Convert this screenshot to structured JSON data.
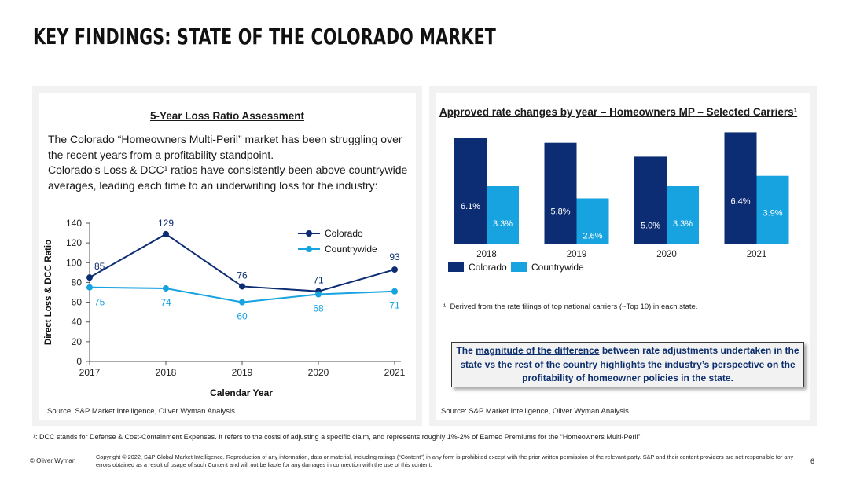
{
  "page": {
    "title": "KEY FINDINGS: STATE OF THE COLORADO MARKET",
    "page_number": "6",
    "brand": "© Oliver Wyman",
    "footnote": "¹: DCC stands for Defense & Cost-Containment Expenses. It refers to the costs of adjusting a specific claim, and represents roughly 1%-2% of Earned Premiums for the “Homeowners Multi-Peril”.",
    "copyright": "Copyright © 2022, S&P Global Market Intelligence.  Reproduction of any information, data or material, including ratings (“Content”) in any form is prohibited except with the prior written permission of the relevant party.  S&P and their content providers are not responsible for any errors obtained as a result of usage of such Content and will not be liable for any damages in connection with the use of this content."
  },
  "left_panel": {
    "title": "5-Year Loss Ratio Assessment",
    "desc_line1": "The Colorado “Homeowners Multi-Peril” market has been struggling over the recent years from a profitability standpoint.",
    "desc_line2": "Colorado’s Loss & DCC¹ ratios have consistently been above countrywide averages, leading each time to an underwriting loss for the industry:",
    "source": "Source: S&P Market Intelligence, Oliver Wyman Analysis."
  },
  "right_panel": {
    "title": "Approved rate changes by year – Homeowners MP – Selected Carriers¹",
    "note": "¹: Derived from the rate filings of top national carriers (~Top 10) in each state.",
    "callout_pre": "The ",
    "callout_underlined": "magnitude of the difference",
    "callout_post": " between rate adjustments undertaken in the state vs the rest of the country highlights the industry’s perspective on the profitability of homeowner policies in the state.",
    "source": "Source: S&P Market Intelligence, Oliver Wyman Analysis."
  },
  "colors": {
    "colorado": "#0c2d73",
    "countrywide": "#16a3e0"
  },
  "chart_data": [
    {
      "type": "line",
      "title": "",
      "xlabel": "Calendar Year",
      "ylabel": "Direct Loss & DCC Ratio",
      "x": [
        "2017",
        "2018",
        "2019",
        "2020",
        "2021"
      ],
      "ylim": [
        0,
        140
      ],
      "yticks": [
        0,
        20,
        40,
        60,
        80,
        100,
        120,
        140
      ],
      "series": [
        {
          "name": "Colorado",
          "values": [
            85,
            129,
            76,
            71,
            93
          ]
        },
        {
          "name": "Countrywide",
          "values": [
            75,
            74,
            60,
            68,
            71
          ]
        }
      ],
      "legend": "top-right"
    },
    {
      "type": "bar",
      "title": "Approved rate changes by year – Homeowners MP – Selected Carriers¹",
      "categories": [
        "2018",
        "2019",
        "2020",
        "2021"
      ],
      "series": [
        {
          "name": "Colorado",
          "values": [
            6.1,
            5.8,
            5.0,
            6.4
          ],
          "labels": [
            "6.1%",
            "5.8%",
            "5.0%",
            "6.4%"
          ]
        },
        {
          "name": "Countrywide",
          "values": [
            3.3,
            2.6,
            3.3,
            3.9
          ],
          "labels": [
            "3.3%",
            "2.6%",
            "3.3%",
            "3.9%"
          ]
        }
      ],
      "ylim": [
        0,
        6.6
      ],
      "legend": "bottom-left"
    }
  ]
}
